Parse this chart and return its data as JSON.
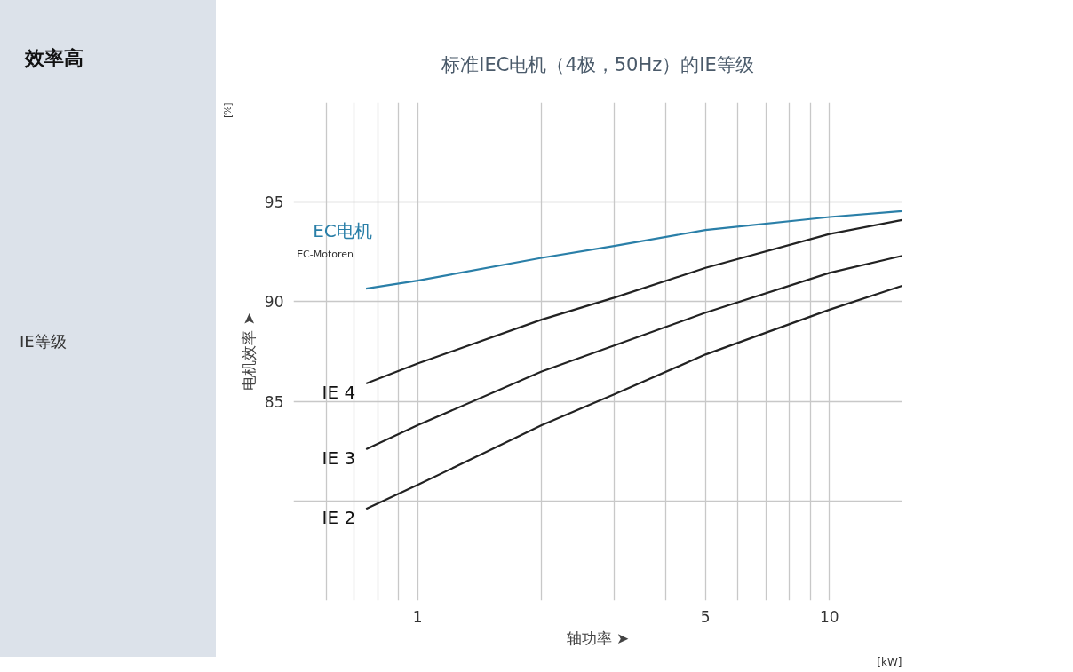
{
  "chart_data": {
    "type": "line",
    "title": "标准IEC电机（4极，50Hz）的IE等级",
    "xlabel": "轴功率 ➤",
    "ylabel": "电机效率 ➤",
    "log": "x",
    "xlim": [
      0.5,
      15
    ],
    "ylim": [
      75,
      100
    ],
    "xticks": [
      {
        "value": 0.6,
        "label": null
      },
      {
        "value": 0.7,
        "label": null
      },
      {
        "value": 0.8,
        "label": null
      },
      {
        "value": 0.9,
        "label": null
      },
      1,
      {
        "value": 2,
        "label": null
      },
      {
        "value": 3,
        "label": null
      },
      {
        "value": 4,
        "label": null
      },
      5,
      {
        "value": 6,
        "label": null
      },
      {
        "value": 7,
        "label": null
      },
      {
        "value": 8,
        "label": null
      },
      {
        "value": 9,
        "label": null
      },
      10
    ],
    "yticks": [
      {
        "value": 80,
        "label": null
      },
      85,
      90,
      95
    ],
    "grid": true,
    "marker": "none",
    "line_style": "solid",
    "x": [
      0.75,
      1,
      2,
      3,
      5,
      10,
      15
    ],
    "series": [
      {
        "name": "EC电机",
        "color": "#2a7fa8",
        "values": [
          90.66,
          91.06,
          92.2,
          92.8,
          93.6,
          94.25,
          94.55
        ]
      },
      {
        "name": "IE 4",
        "color": "#222222",
        "values": [
          85.9,
          86.9,
          89.1,
          90.2,
          91.7,
          93.4,
          94.1
        ]
      },
      {
        "name": "IE 3",
        "color": "#222222",
        "values": [
          82.6,
          83.8,
          86.5,
          87.8,
          89.45,
          91.45,
          92.3
        ]
      },
      {
        "name": "IE 2",
        "color": "#222222",
        "values": [
          79.6,
          80.8,
          83.8,
          85.35,
          87.35,
          89.6,
          90.8
        ]
      }
    ],
    "annotations": [
      "[%]",
      "[kW]",
      "效率高",
      "IE等级",
      "EC-Motoren"
    ]
  }
}
